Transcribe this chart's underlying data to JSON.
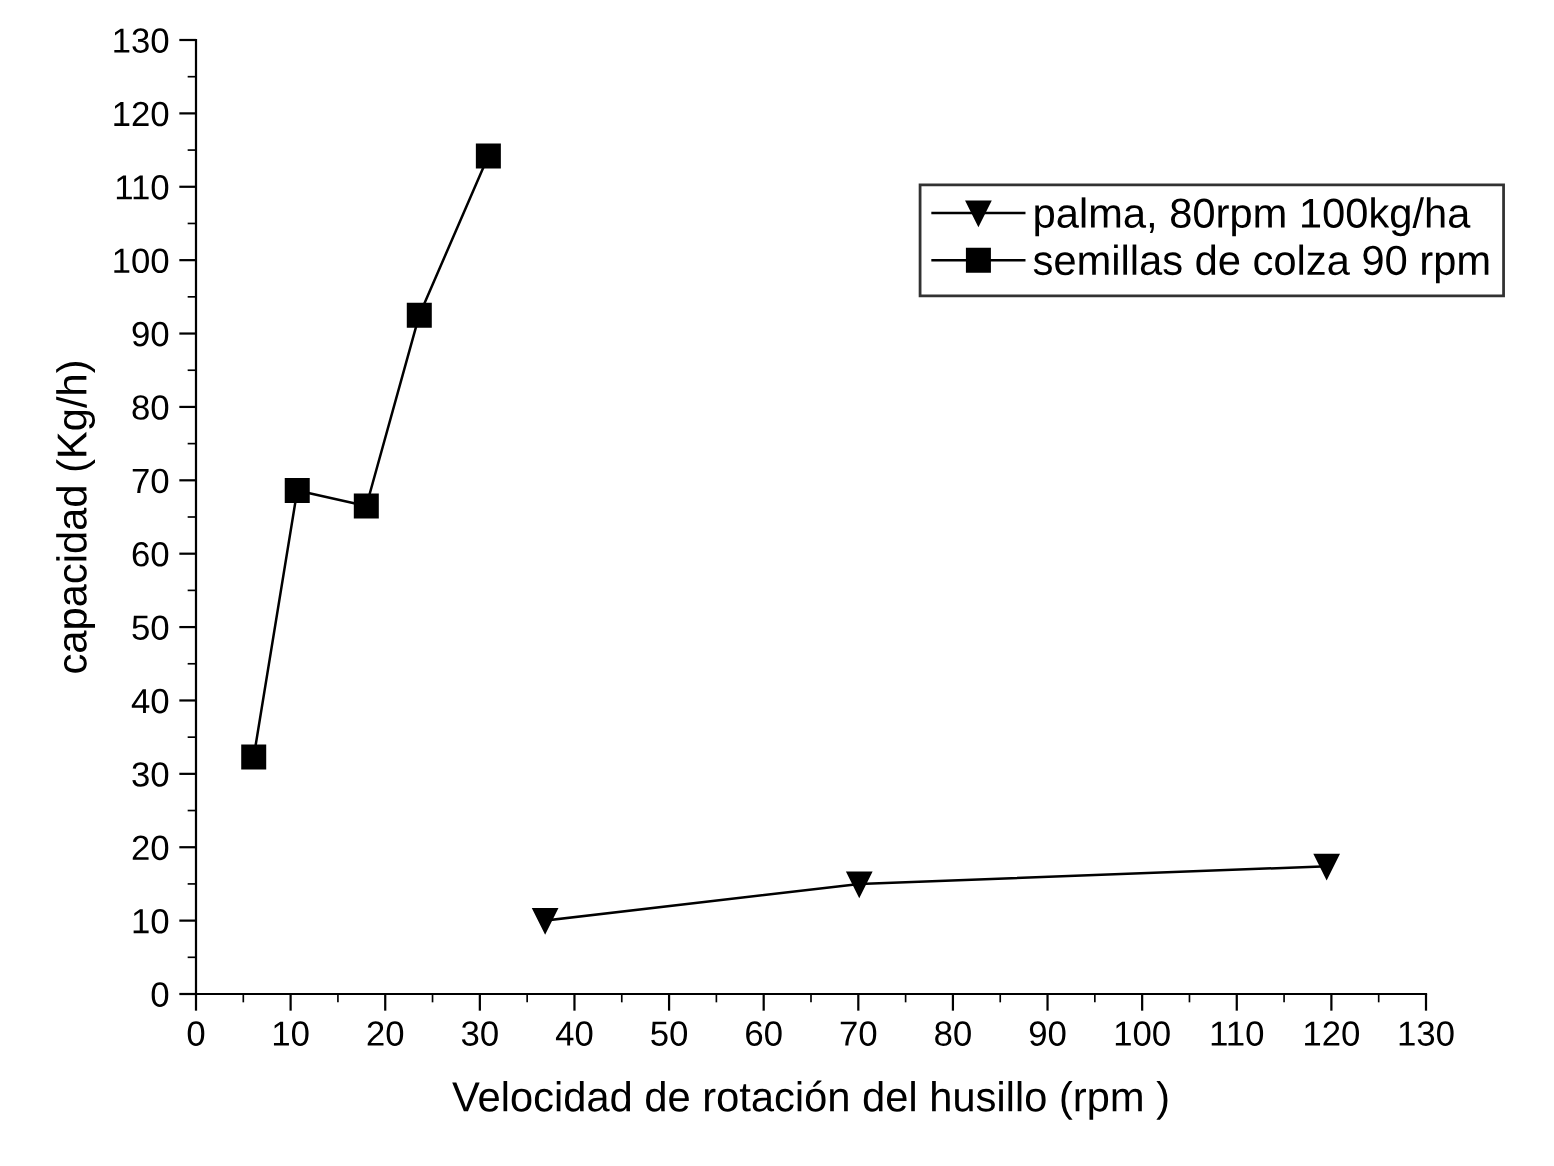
{
  "chart_data": {
    "type": "line",
    "xlabel": "Velocidad de rotación del husillo (rpm )",
    "ylabel": "capacidad (Kg/h)",
    "series": [
      {
        "name": "palma, 80rpm 100kg/ha",
        "color": "#000000",
        "marker": "triangle",
        "x": [
          36.9,
          70.1,
          119.5
        ],
        "values": [
          10.0,
          15.0,
          17.4
        ]
      },
      {
        "name": "semillas de colza 90 rpm",
        "color": "#000000",
        "marker": "square",
        "x": [
          6.1,
          10.7,
          18.0,
          23.6,
          30.9
        ],
        "values": [
          32.3,
          68.6,
          66.5,
          92.5,
          114.2
        ]
      }
    ],
    "xlim": [
      0,
      130
    ],
    "ylim": [
      0,
      130
    ],
    "xticks": [
      0,
      10,
      20,
      30,
      40,
      50,
      60,
      70,
      80,
      90,
      100,
      110,
      120,
      130
    ],
    "yticks": [
      0,
      10,
      20,
      30,
      40,
      50,
      60,
      70,
      80,
      90,
      100,
      110,
      120,
      130
    ],
    "grid": false,
    "legend": "top right"
  }
}
